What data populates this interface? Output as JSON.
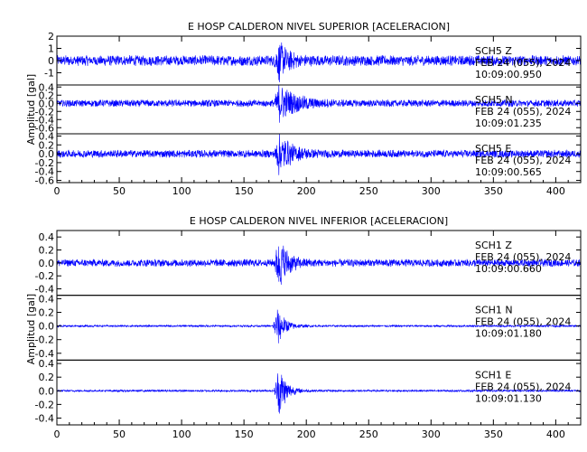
{
  "chart_data": [
    {
      "type": "line",
      "title": "E HOSP CALDERON NIVEL SUPERIOR [ACELERACION]",
      "ylabel": "Amplitud [gal]",
      "xlim": [
        0,
        420
      ],
      "x_ticks": [
        "0",
        "50",
        "100",
        "150",
        "200",
        "250",
        "300",
        "350",
        "400"
      ],
      "series": [
        {
          "name": "SCH5 Z",
          "date": "FEB 24 (055), 2024",
          "time": "10:09:00.950",
          "ylim": [
            -2,
            2
          ],
          "y_ticks": [
            2,
            1,
            0,
            -1
          ],
          "color": "#0000ff",
          "noise": 0.45,
          "peak": 1.6,
          "peak_time": 178,
          "decay": 7
        },
        {
          "name": "SCH5 N",
          "date": "FEB 24 (055), 2024",
          "time": "10:09:01.235",
          "ylim": [
            -0.75,
            0.45
          ],
          "y_ticks": [
            "0.4",
            "0.2",
            "0.0",
            "-0.2",
            "-0.4",
            "-0.6"
          ],
          "color": "#0000ff",
          "noise": 0.09,
          "peak": 0.45,
          "peak_time": 178,
          "decay": 14
        },
        {
          "name": "SCH5 E",
          "date": "FEB 24 (055), 2024",
          "time": "10:09:00.565",
          "ylim": [
            -0.65,
            0.45
          ],
          "y_ticks": [
            "0.4",
            "0.2",
            "0.0",
            "-0.2",
            "-0.4",
            "-0.6"
          ],
          "color": "#0000ff",
          "noise": 0.09,
          "peak": 0.45,
          "peak_time": 178,
          "decay": 10
        }
      ]
    },
    {
      "type": "line",
      "title": "E HOSP CALDERON NIVEL INFERIOR [ACELERACION]",
      "ylabel": "Amplitud [gal]",
      "xlim": [
        0,
        420
      ],
      "x_ticks": [
        "0",
        "50",
        "100",
        "150",
        "200",
        "250",
        "300",
        "350",
        "400"
      ],
      "series": [
        {
          "name": "SCH1 Z",
          "date": "FEB 24 (055), 2024",
          "time": "10:09:00.660",
          "ylim": [
            -0.5,
            0.5
          ],
          "y_ticks": [
            "0.4",
            "0.2",
            "0.0",
            "-0.2",
            "-0.4"
          ],
          "color": "#0000ff",
          "noise": 0.06,
          "peak": 0.42,
          "peak_time": 178,
          "decay": 7
        },
        {
          "name": "SCH1 N",
          "date": "FEB 24 (055), 2024",
          "time": "10:09:01.180",
          "ylim": [
            -0.5,
            0.45
          ],
          "y_ticks": [
            "0.4",
            "0.2",
            "0.0",
            "-0.2",
            "-0.4"
          ],
          "color": "#0000ff",
          "noise": 0.015,
          "peak": 0.3,
          "peak_time": 177,
          "decay": 6
        },
        {
          "name": "SCH1 E",
          "date": "FEB 24 (055), 2024",
          "time": "10:09:01.130",
          "ylim": [
            -0.5,
            0.45
          ],
          "y_ticks": [
            "0.4",
            "0.2",
            "0.0",
            "-0.2",
            "-0.4"
          ],
          "color": "#0000ff",
          "noise": 0.015,
          "peak": 0.4,
          "peak_time": 178,
          "decay": 6
        }
      ]
    }
  ]
}
